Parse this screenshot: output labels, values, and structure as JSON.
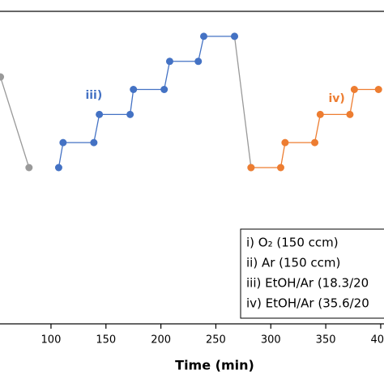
{
  "chart_data": {
    "type": "line",
    "x_label": "Time (min)",
    "xlim": [
      53.6,
      403
    ],
    "xticks": [
      100,
      150,
      200,
      250,
      300,
      350,
      400
    ],
    "ylim": [
      0,
      100
    ],
    "series": [
      {
        "color": "#999999",
        "x": [
          54,
          80,
          null,
          267,
          282
        ],
        "values": [
          79,
          50,
          null,
          92,
          50
        ]
      },
      {
        "color": "#4472c4",
        "x": [
          107,
          111,
          139,
          144,
          172,
          175,
          203,
          208,
          234,
          239,
          267
        ],
        "values": [
          50,
          58,
          58,
          67,
          67,
          75,
          75,
          84,
          84,
          92,
          92
        ]
      },
      {
        "color": "#ed7d31",
        "x": [
          282,
          309,
          313,
          340,
          345,
          372,
          376,
          398
        ],
        "values": [
          50,
          50,
          58,
          58,
          67,
          67,
          75,
          75
        ]
      }
    ],
    "annotations": [
      {
        "text": "iii)",
        "x": 139,
        "y": 73,
        "color": "#4472c4"
      },
      {
        "text": "iv)",
        "x": 360,
        "y": 72,
        "color": "#ed7d31"
      }
    ],
    "legend": [
      "i)  O₂ (150 ccm)",
      "ii) Ar (150 ccm)",
      "iii) EtOH/Ar (18.3/20",
      "iv) EtOH/Ar (35.6/20"
    ]
  }
}
